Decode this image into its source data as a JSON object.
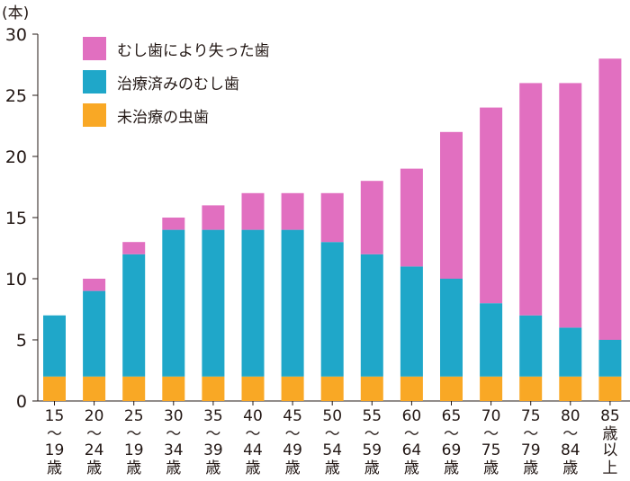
{
  "chart_data": {
    "type": "bar",
    "stacked": true,
    "unit_label": "(本)",
    "title": "",
    "xlabel": "",
    "ylabel": "",
    "ylim": [
      0,
      30
    ],
    "yticks": [
      0,
      5,
      10,
      15,
      20,
      25,
      30
    ],
    "grid": false,
    "legend_position": "top-left",
    "categories": [
      [
        "15",
        "〜",
        "19",
        "歳"
      ],
      [
        "20",
        "〜",
        "24",
        "歳"
      ],
      [
        "25",
        "〜",
        "19",
        "歳"
      ],
      [
        "30",
        "〜",
        "34",
        "歳"
      ],
      [
        "35",
        "〜",
        "39",
        "歳"
      ],
      [
        "40",
        "〜",
        "44",
        "歳"
      ],
      [
        "45",
        "〜",
        "49",
        "歳"
      ],
      [
        "50",
        "〜",
        "54",
        "歳"
      ],
      [
        "55",
        "〜",
        "59",
        "歳"
      ],
      [
        "60",
        "〜",
        "64",
        "歳"
      ],
      [
        "65",
        "〜",
        "69",
        "歳"
      ],
      [
        "70",
        "〜",
        "75",
        "歳"
      ],
      [
        "75",
        "〜",
        "79",
        "歳"
      ],
      [
        "80",
        "〜",
        "84",
        "歳"
      ],
      [
        "85",
        "歳",
        "以",
        "上"
      ]
    ],
    "series": [
      {
        "name": "未治療の虫歯",
        "color": "#F9A825",
        "values": [
          2,
          2,
          2,
          2,
          2,
          2,
          2,
          2,
          2,
          2,
          2,
          2,
          2,
          2,
          2
        ]
      },
      {
        "name": "治療済みのむし歯",
        "color": "#1FA7C9",
        "values": [
          5,
          7,
          10,
          12,
          12,
          12,
          12,
          11,
          10,
          9,
          8,
          6,
          5,
          4,
          3
        ]
      },
      {
        "name": "むし歯により失った歯",
        "color": "#E16FC0",
        "values": [
          0,
          1,
          1,
          1,
          2,
          3,
          3,
          4,
          6,
          8,
          12,
          16,
          19,
          20,
          23
        ]
      }
    ]
  }
}
